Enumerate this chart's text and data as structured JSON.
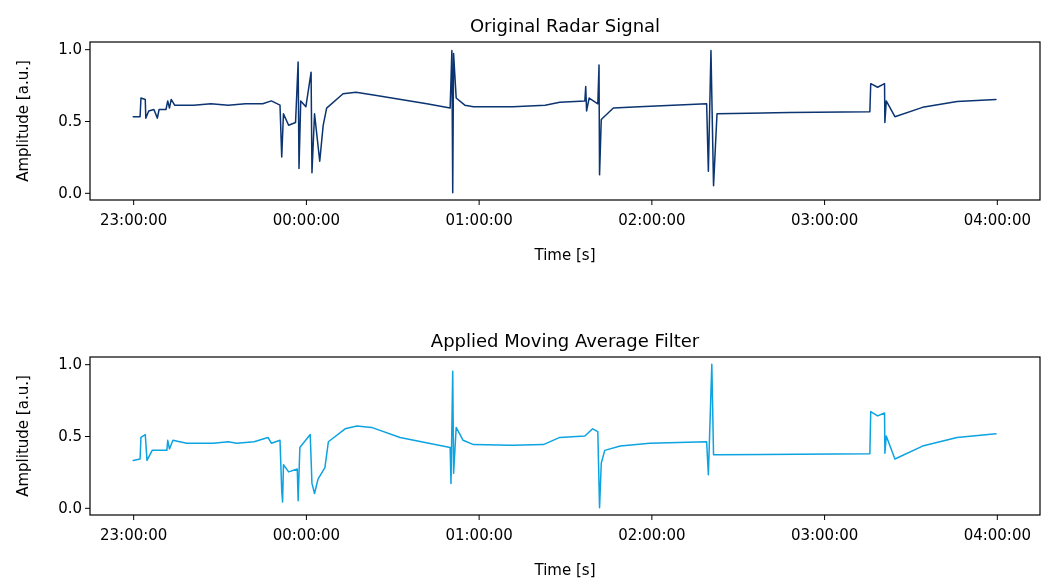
{
  "chart_data": [
    {
      "type": "line",
      "title": "Original Radar Signal",
      "xlabel": "Time [s]",
      "ylabel": "Amplitude [a.u.]",
      "xlim": [
        "2000-01-01T22:45:00",
        "2000-01-02T04:15:00"
      ],
      "ylim": [
        -0.05,
        1.05
      ],
      "xticks": [
        {
          "value": "2000-01-01T23:00:00",
          "label": "23:00:00"
        },
        {
          "value": "2000-01-02T00:00:00",
          "label": "00:00:00"
        },
        {
          "value": "2000-01-02T01:00:00",
          "label": "01:00:00"
        },
        {
          "value": "2000-01-02T02:00:00",
          "label": "02:00:00"
        },
        {
          "value": "2000-01-02T03:00:00",
          "label": "03:00:00"
        },
        {
          "value": "2000-01-02T04:00:00",
          "label": "04:00:00"
        }
      ],
      "yticks": [
        {
          "value": 0,
          "label": "0.0"
        },
        {
          "value": 0.5,
          "label": "0.5"
        },
        {
          "value": 1,
          "label": "1.0"
        }
      ],
      "x": [
        "2000-01-01T23:00:00",
        "2000-01-01T23:02:24",
        "2000-01-01T23:02:42",
        "2000-01-01T23:04:12",
        "2000-01-01T23:04:23",
        "2000-01-01T23:05:24",
        "2000-01-01T23:07:12",
        "2000-01-01T23:08:24",
        "2000-01-01T23:09:00",
        "2000-01-01T23:11:24",
        "2000-01-01T23:12:00",
        "2000-01-01T23:12:36",
        "2000-01-01T23:13:12",
        "2000-01-01T23:14:24",
        "2000-01-01T23:21:00",
        "2000-01-01T23:27:00",
        "2000-01-01T23:33:00",
        "2000-01-01T23:39:00",
        "2000-01-01T23:45:00",
        "2000-01-01T23:48:00",
        "2000-01-01T23:51:00",
        "2000-01-01T23:51:36",
        "2000-01-01T23:52:12",
        "2000-01-01T23:54:00",
        "2000-01-01T23:56:24",
        "2000-01-01T23:57:18",
        "2000-01-01T23:57:36",
        "2000-01-01T23:58:12",
        "2000-01-02T00:00:00",
        "2000-01-02T00:01:48",
        "2000-01-02T00:02:06",
        "2000-01-02T00:03:00",
        "2000-01-02T00:03:36",
        "2000-01-02T00:04:48",
        "2000-01-02T00:06:00",
        "2000-01-02T00:07:12",
        "2000-01-02T00:12:54",
        "2000-01-02T00:17:24",
        "2000-01-02T00:24:00",
        "2000-01-02T00:33:00",
        "2000-01-02T00:42:00",
        "2000-01-02T00:50:06",
        "2000-01-02T00:50:42",
        "2000-01-02T00:51:00",
        "2000-01-02T00:51:18",
        "2000-01-02T00:52:12",
        "2000-01-02T00:55:12",
        "2000-01-02T00:58:12",
        "2000-01-02T01:12:00",
        "2000-01-02T01:23:06",
        "2000-01-02T01:28:12",
        "2000-01-02T01:36:54",
        "2000-01-02T01:37:12",
        "2000-01-02T01:37:30",
        "2000-01-02T01:38:24",
        "2000-01-02T01:41:24",
        "2000-01-02T01:41:49",
        "2000-01-02T01:42:00",
        "2000-01-02T01:42:36",
        "2000-01-02T01:46:48",
        "2000-01-02T01:55:48",
        "2000-01-02T02:19:12",
        "2000-01-02T02:19:48",
        "2000-01-02T02:20:42",
        "2000-01-02T02:21:36",
        "2000-01-02T02:22:48",
        "2000-01-02T02:48:00",
        "2000-01-02T03:15:54",
        "2000-01-02T03:16:12",
        "2000-01-02T03:18:36",
        "2000-01-02T03:21:00",
        "2000-01-02T03:21:07",
        "2000-01-02T03:21:36",
        "2000-01-02T03:24:36",
        "2000-01-02T03:34:12",
        "2000-01-02T03:46:12",
        "2000-01-02T03:59:42"
      ],
      "series": [
        {
          "color": "#0b3470",
          "values": [
            0.53,
            0.53,
            0.66,
            0.65,
            0.52,
            0.57,
            0.58,
            0.52,
            0.58,
            0.58,
            0.64,
            0.59,
            0.65,
            0.61,
            0.61,
            0.62,
            0.61,
            0.62,
            0.62,
            0.64,
            0.61,
            0.25,
            0.55,
            0.47,
            0.49,
            0.91,
            0.17,
            0.64,
            0.6,
            0.84,
            0.14,
            0.55,
            0.44,
            0.22,
            0.47,
            0.59,
            0.69,
            0.7,
            0.68,
            0.65,
            0.62,
            0.59,
            0.99,
            0.0,
            0.97,
            0.66,
            0.61,
            0.6,
            0.6,
            0.61,
            0.63,
            0.64,
            0.74,
            0.57,
            0.66,
            0.62,
            0.89,
            0.125,
            0.51,
            0.59,
            0.6,
            0.62,
            0.15,
            0.99,
            0.05,
            0.55,
            0.56,
            0.565,
            0.76,
            0.735,
            0.76,
            0.49,
            0.64,
            0.53,
            0.595,
            0.635,
            0.65
          ]
        }
      ]
    },
    {
      "type": "line",
      "title": "Applied Moving Average Filter",
      "xlabel": "Time [s]",
      "ylabel": "Amplitude [a.u.]",
      "xlim": [
        "2000-01-01T22:45:00",
        "2000-01-02T04:15:00"
      ],
      "ylim": [
        -0.05,
        1.05
      ],
      "xticks": [
        {
          "value": "2000-01-01T23:00:00",
          "label": "23:00:00"
        },
        {
          "value": "2000-01-02T00:00:00",
          "label": "00:00:00"
        },
        {
          "value": "2000-01-02T01:00:00",
          "label": "01:00:00"
        },
        {
          "value": "2000-01-02T02:00:00",
          "label": "02:00:00"
        },
        {
          "value": "2000-01-02T03:00:00",
          "label": "03:00:00"
        },
        {
          "value": "2000-01-02T04:00:00",
          "label": "04:00:00"
        }
      ],
      "yticks": [
        {
          "value": 0,
          "label": "0.0"
        },
        {
          "value": 0.5,
          "label": "0.5"
        },
        {
          "value": 1,
          "label": "1.0"
        }
      ],
      "x": [
        "2000-01-01T23:00:00",
        "2000-01-01T23:02:24",
        "2000-01-01T23:02:42",
        "2000-01-01T23:04:12",
        "2000-01-01T23:04:48",
        "2000-01-01T23:06:36",
        "2000-01-01T23:11:42",
        "2000-01-01T23:12:00",
        "2000-01-01T23:12:36",
        "2000-01-01T23:13:48",
        "2000-01-01T23:18:36",
        "2000-01-01T23:27:54",
        "2000-01-01T23:33:00",
        "2000-01-01T23:36:00",
        "2000-01-01T23:42:00",
        "2000-01-01T23:46:48",
        "2000-01-01T23:48:00",
        "2000-01-01T23:51:00",
        "2000-01-01T23:51:36",
        "2000-01-01T23:51:54",
        "2000-01-01T23:52:12",
        "2000-01-01T23:54:00",
        "2000-01-01T23:57:00",
        "2000-01-01T23:57:18",
        "2000-01-01T23:57:54",
        "2000-01-02T00:01:30",
        "2000-01-02T00:02:06",
        "2000-01-02T00:03:00",
        "2000-01-02T00:04:12",
        "2000-01-02T00:06:36",
        "2000-01-02T00:07:48",
        "2000-01-02T00:13:37",
        "2000-01-02T00:17:42",
        "2000-01-02T00:22:48",
        "2000-01-02T00:32:42",
        "2000-01-02T00:50:06",
        "2000-01-02T00:50:24",
        "2000-01-02T00:51:00",
        "2000-01-02T00:51:18",
        "2000-01-02T00:52:12",
        "2000-01-02T00:54:36",
        "2000-01-02T00:58:12",
        "2000-01-02T01:12:00",
        "2000-01-02T01:22:30",
        "2000-01-02T01:28:12",
        "2000-01-02T01:36:54",
        "2000-01-02T01:39:36",
        "2000-01-02T01:41:24",
        "2000-01-02T01:42:00",
        "2000-01-02T01:42:36",
        "2000-01-02T01:43:48",
        "2000-01-02T01:49:12",
        "2000-01-02T01:59:24",
        "2000-01-02T02:19:12",
        "2000-01-02T02:19:48",
        "2000-01-02T02:21:00",
        "2000-01-02T02:21:36",
        "2000-01-02T02:22:48",
        "2000-01-02T03:15:54",
        "2000-01-02T03:16:12",
        "2000-01-02T03:18:36",
        "2000-01-02T03:21:00",
        "2000-01-02T03:21:07",
        "2000-01-02T03:21:36",
        "2000-01-02T03:24:36",
        "2000-01-02T03:34:12",
        "2000-01-02T03:46:12",
        "2000-01-02T03:59:42"
      ],
      "series": [
        {
          "color": "#0ca3e0",
          "values": [
            0.33,
            0.34,
            0.49,
            0.51,
            0.33,
            0.4,
            0.4,
            0.47,
            0.41,
            0.47,
            0.45,
            0.45,
            0.46,
            0.45,
            0.46,
            0.49,
            0.45,
            0.47,
            0.12,
            0.04,
            0.3,
            0.25,
            0.27,
            0.05,
            0.42,
            0.51,
            0.17,
            0.1,
            0.2,
            0.28,
            0.46,
            0.55,
            0.57,
            0.56,
            0.49,
            0.42,
            0.17,
            0.95,
            0.24,
            0.56,
            0.47,
            0.44,
            0.435,
            0.44,
            0.49,
            0.5,
            0.55,
            0.53,
            0.0,
            0.31,
            0.4,
            0.43,
            0.45,
            0.46,
            0.23,
            1.0,
            0.37,
            0.37,
            0.376,
            0.67,
            0.64,
            0.66,
            0.38,
            0.5,
            0.34,
            0.43,
            0.49,
            0.515
          ]
        }
      ]
    }
  ]
}
